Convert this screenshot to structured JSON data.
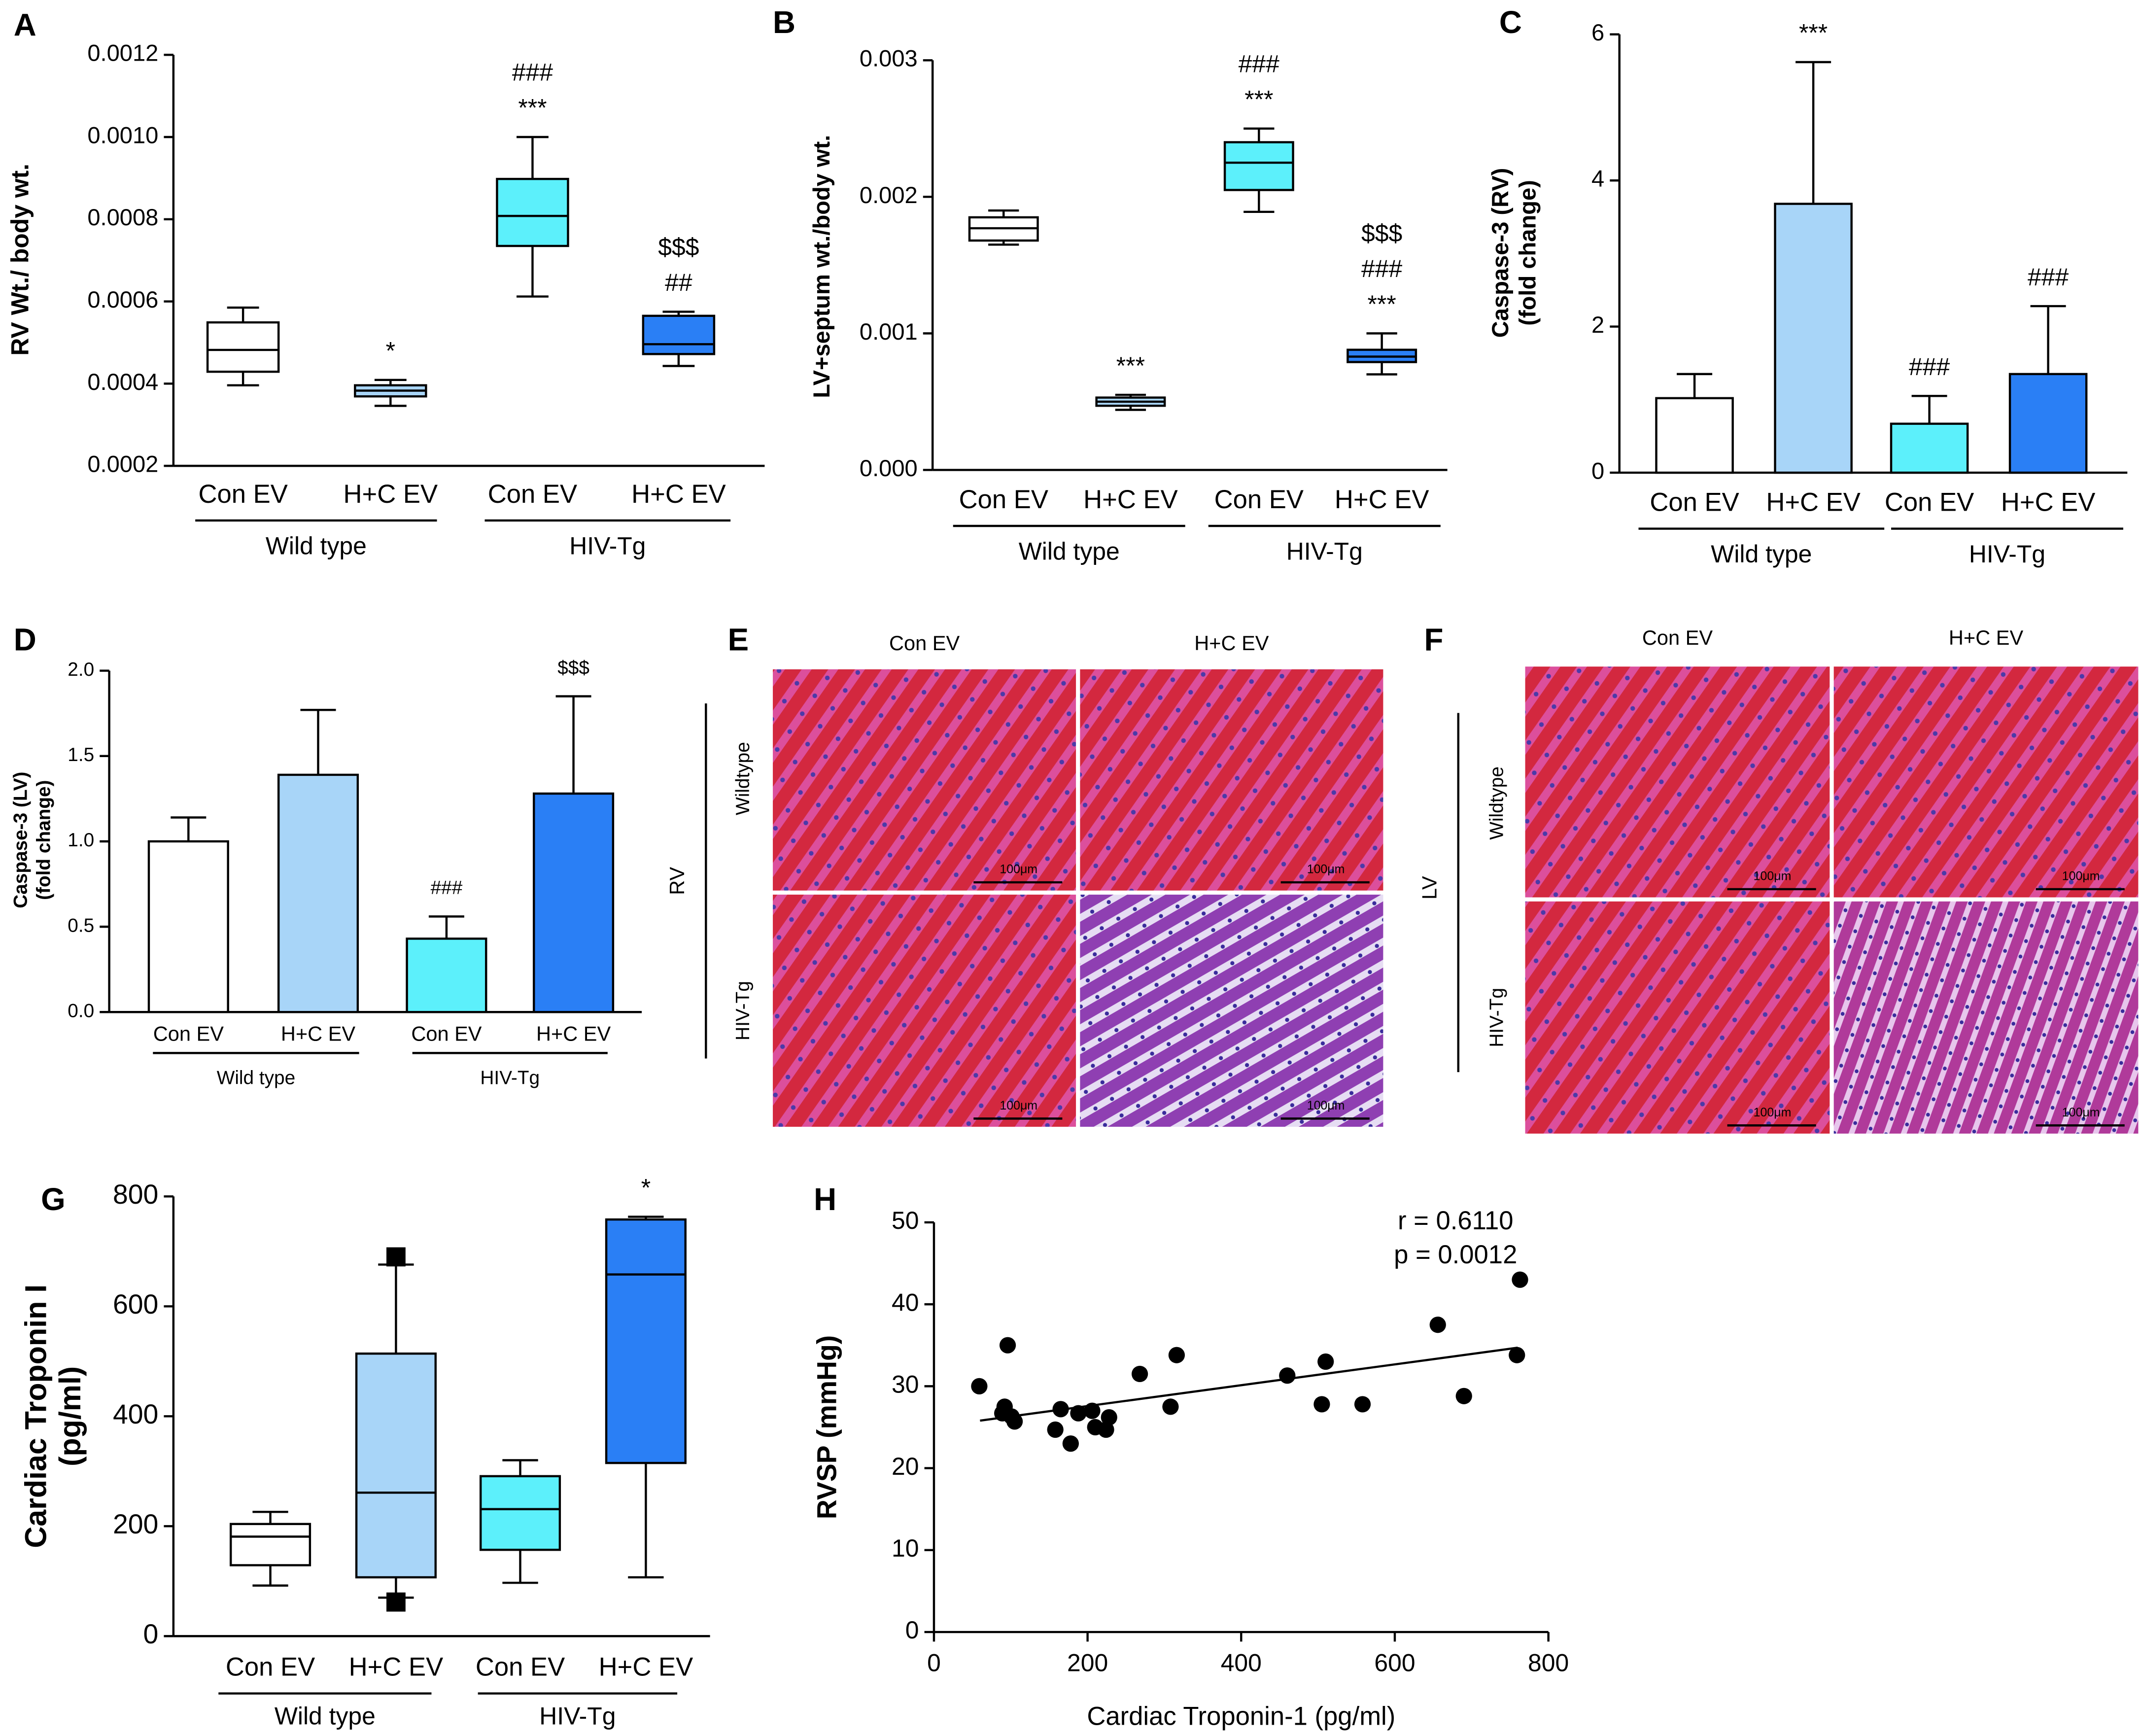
{
  "chart_data": [
    {
      "panel": "A",
      "type": "box",
      "ylabel": [
        "RV Wt./ body wt."
      ],
      "categories": [
        "Con EV",
        "H+C EV",
        "Con EV",
        "H+C EV"
      ],
      "groups": [
        "Wild type",
        "HIV-Tg"
      ],
      "ylim": [
        0.0002,
        0.0012
      ],
      "yticks": [
        0.0002,
        0.0004,
        0.0006,
        0.0008,
        {
          "value": 0.001,
          "label": "0.0010"
        },
        0.0012
      ],
      "boxes": [
        {
          "min": 0.000396,
          "q1": 0.000429,
          "median": 0.000482,
          "q3": 0.000549,
          "max": 0.000585,
          "color": "#ffffff"
        },
        {
          "min": 0.000346,
          "q1": 0.000369,
          "median": 0.000383,
          "q3": 0.000396,
          "max": 0.000409,
          "color": "#a8d5f8"
        },
        {
          "min": 0.000612,
          "q1": 0.000735,
          "median": 0.000808,
          "q3": 0.000898,
          "max": 0.001,
          "color": "#5cf0fb"
        },
        {
          "min": 0.000443,
          "q1": 0.000472,
          "median": 0.000496,
          "q3": 0.000565,
          "max": 0.000575,
          "color": "#2a7ff5"
        }
      ],
      "annotations": [
        [],
        [
          "*"
        ],
        [
          "###",
          "***"
        ],
        [
          "$$$",
          "##"
        ]
      ]
    },
    {
      "panel": "B",
      "type": "box",
      "ylabel": [
        "LV+septum wt./body wt."
      ],
      "categories": [
        "Con EV",
        "H+C EV",
        "Con EV",
        "H+C EV"
      ],
      "groups": [
        "Wild type",
        "HIV-Tg"
      ],
      "ylim": [
        0,
        0.003
      ],
      "yticks": [
        {
          "value": 0,
          "label": "0.000"
        },
        0.001,
        0.002,
        0.003
      ],
      "boxes": [
        {
          "min": 0.00165,
          "q1": 0.00168,
          "median": 0.00177,
          "q3": 0.00185,
          "max": 0.0019,
          "color": "#ffffff"
        },
        {
          "min": 0.00044,
          "q1": 0.00047,
          "median": 0.0005,
          "q3": 0.00053,
          "max": 0.00055,
          "color": "#a8d5f8"
        },
        {
          "min": 0.00189,
          "q1": 0.00205,
          "median": 0.00225,
          "q3": 0.0024,
          "max": 0.0025,
          "color": "#5cf0fb"
        },
        {
          "min": 0.0007,
          "q1": 0.00079,
          "median": 0.00083,
          "q3": 0.00088,
          "max": 0.001,
          "color": "#2a7ff5"
        }
      ],
      "annotations": [
        [],
        [
          "***"
        ],
        [
          "###",
          "***"
        ],
        [
          "$$$",
          "###",
          "***"
        ]
      ]
    },
    {
      "panel": "C",
      "type": "bar",
      "ylabel": [
        "Caspase-3 (RV)",
        "(fold change)"
      ],
      "categories": [
        "Con EV",
        "H+C EV",
        "Con EV",
        "H+C EV"
      ],
      "groups": [
        "Wild type",
        "HIV-Tg"
      ],
      "ylim": [
        0,
        6
      ],
      "yticks": [
        0,
        2,
        4,
        6
      ],
      "values": [
        1.02,
        3.68,
        0.67,
        1.35
      ],
      "errors": [
        0.33,
        1.94,
        0.38,
        0.93
      ],
      "colors": [
        "#ffffff",
        "#a8d5f8",
        "#5cf0fb",
        "#2a7ff5"
      ],
      "annotations": [
        [],
        [
          "***"
        ],
        [
          "###"
        ],
        [
          "###"
        ]
      ]
    },
    {
      "panel": "D",
      "type": "bar",
      "ylabel": [
        "Caspase-3 (LV)",
        "(fold change)"
      ],
      "categories": [
        "Con EV",
        "H+C EV",
        "Con EV",
        "H+C EV"
      ],
      "groups": [
        "Wild type",
        "HIV-Tg"
      ],
      "ylim": [
        0,
        2
      ],
      "yticks": [
        {
          "value": 0,
          "label": "0.0"
        },
        0.5,
        {
          "value": 1,
          "label": "1.0"
        },
        1.5,
        {
          "value": 2,
          "label": "2.0"
        }
      ],
      "values": [
        1.0,
        1.39,
        0.43,
        1.28
      ],
      "errors": [
        0.14,
        0.38,
        0.13,
        0.57
      ],
      "colors": [
        "#ffffff",
        "#a8d5f8",
        "#5cf0fb",
        "#2a7ff5"
      ],
      "annotations": [
        [],
        [],
        [
          "###"
        ],
        [
          "$$$"
        ]
      ]
    },
    {
      "panel": "G",
      "type": "box",
      "ylabel": [
        "Cardiac Troponin I",
        "(pg/ml)"
      ],
      "categories": [
        "Con EV",
        "H+C EV",
        "Con EV",
        "H+C EV"
      ],
      "groups": [
        "Wild type",
        "HIV-Tg"
      ],
      "ylim": [
        0,
        800
      ],
      "yticks": [
        0,
        200,
        400,
        600,
        800
      ],
      "boxes": [
        {
          "min": 92,
          "q1": 129,
          "median": 181,
          "q3": 204,
          "max": 226,
          "color": "#ffffff"
        },
        {
          "min": 70,
          "q1": 107,
          "median": 261,
          "q3": 514,
          "max": 676,
          "color": "#a8d5f8",
          "outliers": [
            690,
            62
          ]
        },
        {
          "min": 97,
          "q1": 157,
          "median": 231,
          "q3": 291,
          "max": 320,
          "color": "#5cf0fb"
        },
        {
          "min": 107,
          "q1": 315,
          "median": 658,
          "q3": 758,
          "max": 763,
          "color": "#2a7ff5"
        }
      ],
      "annotations": [
        [],
        [],
        [],
        [
          "*"
        ]
      ]
    },
    {
      "panel": "H",
      "type": "scatter",
      "xlabel": "Cardiac Troponin-1 (pg/ml)",
      "ylabel": "RVSP (mmHg)",
      "xlim": [
        0,
        800
      ],
      "ylim": [
        0,
        50
      ],
      "xticks": [
        0,
        200,
        400,
        600,
        800
      ],
      "yticks": [
        0,
        10,
        20,
        30,
        40,
        50
      ],
      "x": [
        59,
        92,
        96,
        89,
        101,
        105,
        165,
        158,
        178,
        188,
        206,
        210,
        224,
        228,
        268,
        308,
        316,
        460,
        510,
        505,
        558,
        656,
        690,
        759,
        763
      ],
      "y": [
        30.0,
        27.5,
        35.0,
        26.7,
        26.3,
        25.7,
        27.2,
        24.7,
        23.0,
        26.7,
        27.0,
        25.0,
        24.7,
        26.2,
        31.5,
        27.5,
        33.8,
        31.3,
        33.0,
        27.8,
        27.8,
        37.5,
        28.8,
        33.8,
        43.0
      ],
      "color": "#000000",
      "trendline": {
        "x": [
          60,
          760
        ],
        "y": [
          25.8,
          34.7
        ],
        "color": "#2b7bd6"
      },
      "annotations": [
        "r = 0.6110",
        "p = 0.0012"
      ]
    }
  ],
  "micrographs": [
    {
      "panel": "E",
      "region": "RV",
      "columns": [
        "Con EV",
        "H+C EV"
      ],
      "rows": [
        "Wildtype",
        "HIV-Tg"
      ],
      "scale_bar": "100μm"
    },
    {
      "panel": "F",
      "region": "LV",
      "columns": [
        "Con EV",
        "H+C EV"
      ],
      "rows": [
        "Wildtype",
        "HIV-Tg"
      ],
      "scale_bar": "100μm"
    }
  ]
}
